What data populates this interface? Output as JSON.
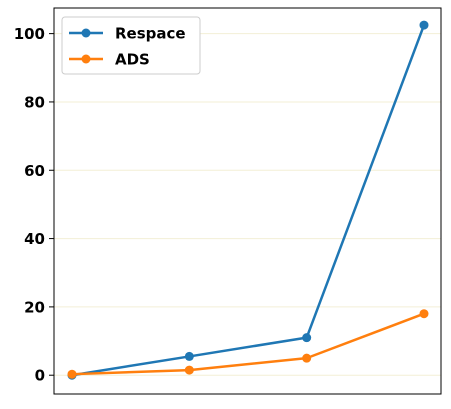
{
  "chart_data": {
    "type": "line",
    "title": "",
    "xlabel": "",
    "ylabel": "",
    "x": [
      1,
      2,
      3,
      4
    ],
    "ylim": [
      -5.5,
      107.5
    ],
    "yticks": [
      0,
      20,
      40,
      60,
      80,
      100
    ],
    "ytick_labels": [
      "0",
      "20",
      "40",
      "60",
      "80",
      "100"
    ],
    "grid": true,
    "legend_position": "top-left",
    "series": [
      {
        "name": "Respace",
        "color": "#1f77b4",
        "values": [
          0,
          5.5,
          11,
          102.5
        ]
      },
      {
        "name": "ADS",
        "color": "#ff7f0e",
        "values": [
          0.3,
          1.5,
          5,
          18
        ]
      }
    ]
  }
}
